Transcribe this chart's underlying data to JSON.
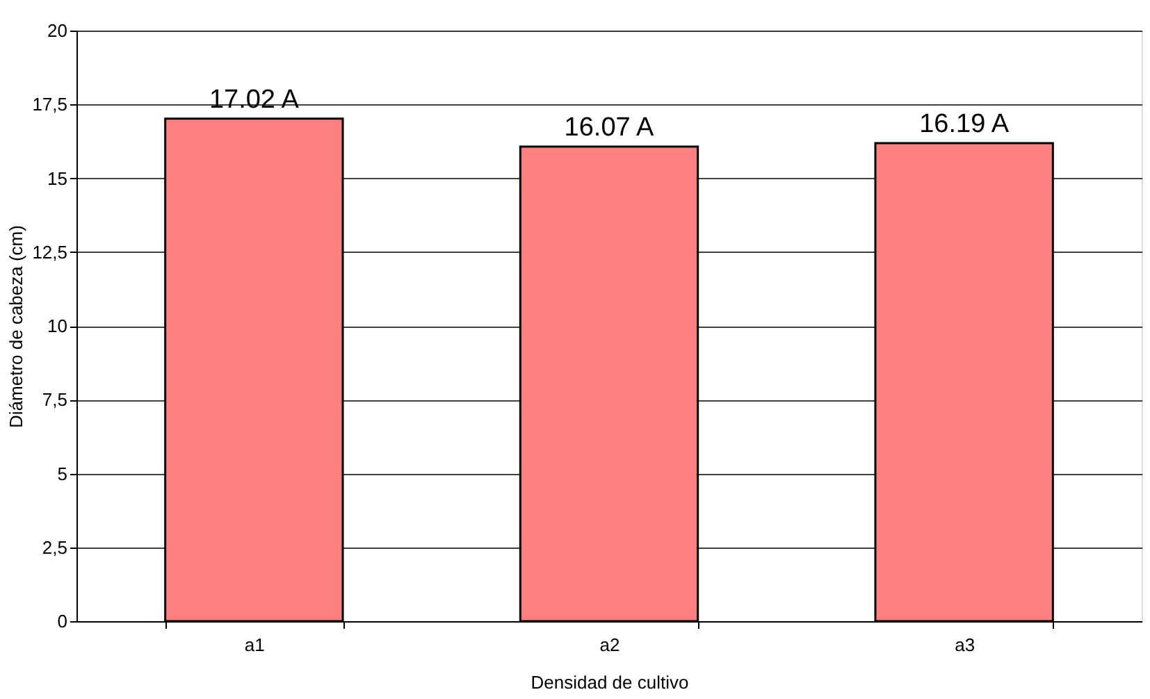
{
  "chart_data": {
    "type": "bar",
    "xlabel": "Densidad de cultivo",
    "ylabel": "Diámetro  de cabeza (cm)",
    "categories": [
      "a1",
      "a2",
      "a3"
    ],
    "values": [
      17.02,
      16.07,
      16.19
    ],
    "value_labels": [
      "17.02 A",
      "16.07 A",
      "16.19 A"
    ],
    "color": "#ff7f7f",
    "ylim": [
      0,
      20
    ],
    "yticks": [
      0,
      {
        "value": 2.5,
        "label": "2,5"
      },
      5,
      {
        "value": 7.5,
        "label": "7,5"
      },
      10,
      {
        "value": 12.5,
        "label": "12,5"
      },
      15,
      {
        "value": 17.5,
        "label": "17,5"
      },
      20
    ],
    "grid": "y"
  }
}
